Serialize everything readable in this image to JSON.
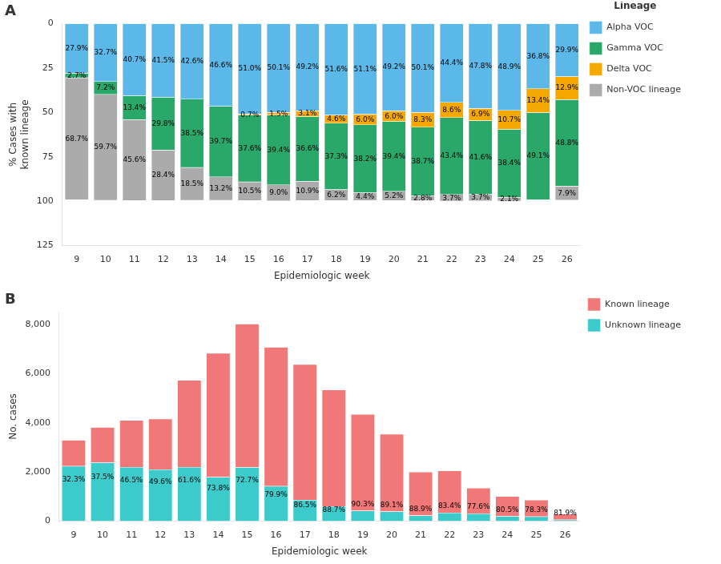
{
  "chart_data": [
    {
      "type": "bar",
      "title": "A",
      "stacked": true,
      "data_labels": true,
      "grid": false,
      "legend": "right",
      "legend_title": "Lineage",
      "xlabel": "Epidemiologic week",
      "ylabel": "% Cases with\nknown lineage",
      "categories": [
        "9",
        "10",
        "11",
        "12",
        "13",
        "14",
        "15",
        "16",
        "17",
        "18",
        "19",
        "20",
        "21",
        "22",
        "23",
        "24",
        "25",
        "26"
      ],
      "ylim": [
        125,
        0
      ],
      "yticks": [
        0,
        25,
        50,
        75,
        100,
        125
      ],
      "series": [
        {
          "name": "Alpha\nVOC",
          "color": "#5BB8E8",
          "values": [
            27.9,
            32.7,
            40.7,
            41.5,
            42.6,
            46.6,
            51.0,
            50.1,
            49.2,
            51.6,
            51.1,
            49.2,
            50.1,
            44.4,
            47.8,
            48.9,
            36.8,
            29.9
          ],
          "value_labels": [
            "27.9%",
            "32.7%",
            "40.7%",
            "41.5%",
            "42.6%",
            "46.6%",
            "51.0%",
            "50.1%",
            "49.2%",
            "51.6%",
            "51.1%",
            "49.2%",
            "50.1%",
            "44.4%",
            "47.8%",
            "48.9%",
            "36.8%",
            "29.9%"
          ]
        },
        {
          "name": "Gamma\nVOC",
          "color": "#2AA86A",
          "values": [
            2.7,
            7.2,
            13.4,
            0.0,
            0.0,
            0.1,
            0.0,
            0.0,
            0.0,
            0.0,
            0.0,
            0.0,
            0.0,
            0.0,
            0.0,
            0.0,
            0.0,
            0.0
          ],
          "value_labels": [
            "2.7%",
            "7.2%",
            "13.4%",
            null,
            null,
            null,
            null,
            null,
            null,
            null,
            null,
            null,
            null,
            null,
            null,
            null,
            null,
            null
          ]
        },
        {
          "name": "Delta\nVOC",
          "color": "#F5A800",
          "values": [
            0.0,
            0.0,
            0.0,
            0.0,
            0.0,
            0.0,
            0.7,
            1.5,
            3.1,
            4.6,
            6.0,
            6.0,
            8.3,
            8.6,
            6.9,
            10.7,
            13.4,
            12.9
          ],
          "value_labels": [
            null,
            null,
            null,
            null,
            null,
            null,
            "0.7%",
            "1.5%",
            "3.1%",
            "4.6%",
            "6.0%",
            "6.0%",
            "8.3%",
            "8.6%",
            "6.9%",
            "10.7%",
            "13.4%",
            "12.9%"
          ]
        },
        {
          "name": "Gamma\nVOC",
          "color": "#2AA86A",
          "values": [
            0.0,
            0.0,
            0.0,
            29.8,
            38.5,
            39.7,
            37.6,
            39.4,
            36.6,
            37.3,
            38.2,
            39.4,
            38.7,
            43.4,
            41.6,
            38.4,
            49.1,
            48.8
          ],
          "value_labels": [
            null,
            null,
            null,
            "29.8%",
            "38.5%",
            "39.7%",
            "37.6%",
            "39.4%",
            "36.6%",
            "37.3%",
            "38.2%",
            "39.4%",
            "38.7%",
            "43.4%",
            "41.6%",
            "38.4%",
            "49.1%",
            "48.8%"
          ]
        },
        {
          "name": "Non-VOC\nlineage",
          "color": "#ABABAB",
          "values": [
            68.7,
            59.7,
            45.6,
            28.4,
            18.5,
            13.2,
            10.5,
            9.0,
            10.9,
            6.2,
            4.4,
            5.2,
            2.8,
            3.7,
            3.7,
            2.1,
            0.0,
            7.9
          ],
          "value_labels": [
            "68.7%",
            "59.7%",
            "45.6%",
            "28.4%",
            "18.5%",
            "13.2%",
            "10.5%",
            "9.0%",
            "10.9%",
            "6.2%",
            "4.4%",
            "5.2%",
            "2.8%",
            "3.7%",
            "3.7%",
            "2.1%",
            null,
            "7.9%"
          ]
        }
      ]
    },
    {
      "type": "bar",
      "title": "B",
      "stacked": true,
      "grid": false,
      "legend": "right",
      "xlabel": "Epidemiologic week",
      "ylabel": "No. cases",
      "categories": [
        "9",
        "10",
        "11",
        "12",
        "13",
        "14",
        "15",
        "16",
        "17",
        "18",
        "19",
        "20",
        "21",
        "22",
        "23",
        "24",
        "25",
        "26"
      ],
      "ylim": [
        0,
        8500
      ],
      "yticks": [
        0,
        {
          "value": 2000,
          "label": "2,000"
        },
        {
          "value": 4000,
          "label": "4,000"
        },
        {
          "value": 6000,
          "label": "6,000"
        },
        {
          "value": 8000,
          "label": "8,000"
        }
      ],
      "series": [
        {
          "name": "Unknown lineage",
          "color": "#3DCACA",
          "values": [
            2234.1,
            2387.5,
            2193.5,
            2096.64,
            2200.32,
            1789.46,
            2189.46,
            1423.08,
            861.3,
            603.42,
            421.95,
            385.86,
            222,
            340.3,
            302.4,
            196.95,
            186.62,
            52.49
          ]
        },
        {
          "name": "Known lineage",
          "color": "#F07878",
          "values": [
            1065.9,
            1432.5,
            1906.5,
            2063.36,
            3529.68,
            5040.54,
            5830.54,
            5656.92,
            5518.7,
            4736.58,
            3928.05,
            3154.14,
            1778,
            1709.7,
            1047.6,
            813.05,
            673.38,
            237.51
          ]
        }
      ],
      "annotations": [
        {
          "x": "9",
          "text": "32.3%"
        },
        {
          "x": "10",
          "text": "37.5%"
        },
        {
          "x": "11",
          "text": "46.5%"
        },
        {
          "x": "12",
          "text": "49.6%"
        },
        {
          "x": "13",
          "text": "61.6%"
        },
        {
          "x": "14",
          "text": "73.8%"
        },
        {
          "x": "15",
          "text": "72.7%"
        },
        {
          "x": "16",
          "text": "79.9%"
        },
        {
          "x": "17",
          "text": "86.5%"
        },
        {
          "x": "18",
          "text": "88.7%"
        },
        {
          "x": "19",
          "text": "90.3%"
        },
        {
          "x": "20",
          "text": "89.1%"
        },
        {
          "x": "21",
          "text": "88.9%"
        },
        {
          "x": "22",
          "text": "83.4%"
        },
        {
          "x": "23",
          "text": "77.6%"
        },
        {
          "x": "24",
          "text": "80.5%"
        },
        {
          "x": "25",
          "text": "78.3%"
        },
        {
          "x": "26",
          "text": "81.9%"
        }
      ]
    }
  ]
}
